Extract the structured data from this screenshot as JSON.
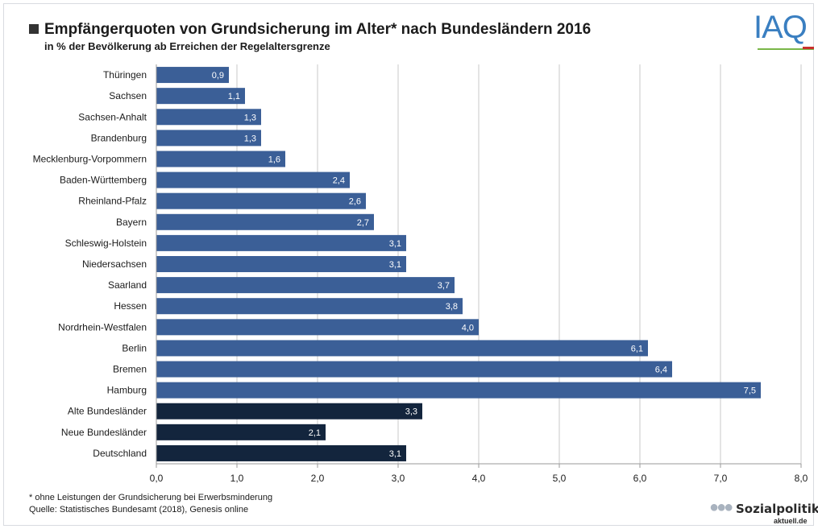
{
  "header": {
    "title": "Empfängerquoten von Grundsicherung im Alter* nach Bundesländern 2016",
    "subtitle": "in % der Bevölkerung ab Erreichen der Regelaltersgrenze",
    "logo_text": "IAQ"
  },
  "footer": {
    "footnote": "* ohne Leistungen der Grundsicherung bei Erwerbsminderung",
    "source": "Quelle: Statistisches Bundesamt (2018), Genesis online",
    "logo_main": "Sozialpolitik-",
    "logo_sub": "aktuell.de"
  },
  "colors": {
    "state_bar": "#3b5f97",
    "aggregate_bar": "#13253d",
    "grid": "#c8c8c8",
    "label_text": "#ffffff"
  },
  "chart_data": {
    "type": "bar",
    "orientation": "horizontal",
    "title": "Empfängerquoten von Grundsicherung im Alter* nach Bundesländern 2016",
    "subtitle": "in % der Bevölkerung ab Erreichen der Regelaltersgrenze",
    "categories": [
      "Thüringen",
      "Sachsen",
      "Sachsen-Anhalt",
      "Brandenburg",
      "Mecklenburg-Vorpommern",
      "Baden-Württemberg",
      "Rheinland-Pfalz",
      "Bayern",
      "Schleswig-Holstein",
      "Niedersachsen",
      "Saarland",
      "Hessen",
      "Nordrhein-Westfalen",
      "Berlin",
      "Bremen",
      "Hamburg",
      "Alte Bundesländer",
      "Neue Bundesländer",
      "Deutschland"
    ],
    "values": [
      0.9,
      1.1,
      1.3,
      1.3,
      1.6,
      2.4,
      2.6,
      2.7,
      3.1,
      3.1,
      3.7,
      3.8,
      4.0,
      6.1,
      6.4,
      7.5,
      3.3,
      2.1,
      3.1
    ],
    "value_labels": [
      "0,9",
      "1,1",
      "1,3",
      "1,3",
      "1,6",
      "2,4",
      "2,6",
      "2,7",
      "3,1",
      "3,1",
      "3,7",
      "3,8",
      "4,0",
      "6,1",
      "6,4",
      "7,5",
      "3,3",
      "2,1",
      "3,1"
    ],
    "group": [
      "state",
      "state",
      "state",
      "state",
      "state",
      "state",
      "state",
      "state",
      "state",
      "state",
      "state",
      "state",
      "state",
      "state",
      "state",
      "state",
      "aggregate",
      "aggregate",
      "aggregate"
    ],
    "xlim": [
      0,
      8
    ],
    "xticks": [
      0,
      1,
      2,
      3,
      4,
      5,
      6,
      7,
      8
    ],
    "xtick_labels": [
      "0,0",
      "1,0",
      "2,0",
      "3,0",
      "4,0",
      "5,0",
      "6,0",
      "7,0",
      "8,0"
    ],
    "xlabel": "",
    "ylabel": "",
    "grid": "vertical",
    "legend": "none"
  }
}
